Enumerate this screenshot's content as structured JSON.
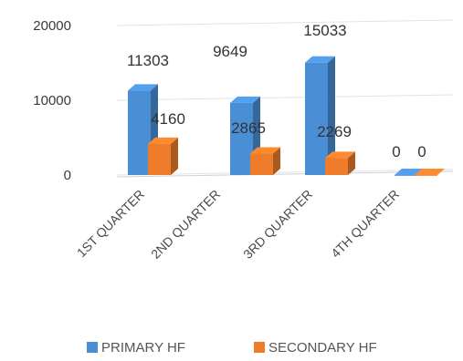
{
  "chart_data": {
    "type": "bar",
    "style": "3d-clustered-column",
    "categories": [
      "1ST QUARTER",
      "2ND QUARTER",
      "3RD QUARTER",
      "4TH QUARTER"
    ],
    "series": [
      {
        "name": "PRIMARY HF",
        "color": "#4a8fd6",
        "values": [
          11303,
          9649,
          15033,
          0
        ]
      },
      {
        "name": "SECONDARY HF",
        "color": "#ef7c2a",
        "values": [
          4160,
          2865,
          2269,
          0
        ]
      }
    ],
    "data_labels": [
      [
        "11303",
        "9649",
        "15033",
        "0"
      ],
      [
        "4160",
        "2865",
        "2269",
        "0"
      ]
    ],
    "yticks": [
      "0",
      "10000",
      "20000"
    ],
    "ylim": [
      0,
      20000
    ],
    "grid": true,
    "legend": "bottom",
    "title": "",
    "xlabel": "",
    "ylabel": ""
  }
}
